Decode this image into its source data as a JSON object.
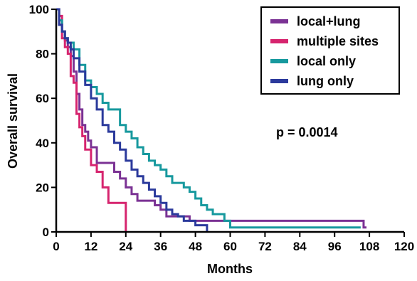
{
  "chart_data": {
    "type": "line",
    "step": true,
    "xlabel": "Months",
    "ylabel": "Overall survival",
    "xlim": [
      0,
      120
    ],
    "ylim": [
      0,
      100
    ],
    "xticks": [
      0,
      12,
      24,
      36,
      48,
      60,
      72,
      84,
      96,
      108,
      120
    ],
    "yticks": [
      0,
      20,
      40,
      60,
      80,
      100
    ],
    "grid": false,
    "legend_position": "top-right",
    "annotation": "p = 0.0014",
    "series": [
      {
        "name": "local+lung",
        "color": "#7b3294",
        "x": [
          0,
          1,
          2,
          3,
          4,
          5,
          6,
          7,
          8,
          9,
          10,
          11,
          12,
          14,
          16,
          18,
          20,
          22,
          24,
          26,
          28,
          30,
          32,
          34,
          36,
          38,
          42,
          46,
          50,
          54,
          60,
          106,
          107
        ],
        "y": [
          100,
          93,
          90,
          86,
          83,
          79,
          72,
          62,
          55,
          48,
          45,
          41,
          38,
          31,
          31,
          31,
          27,
          24,
          20,
          17,
          14,
          14,
          14,
          12,
          10,
          7,
          7,
          5,
          5,
          5,
          5,
          2,
          2
        ]
      },
      {
        "name": "multiple sites",
        "color": "#d6246e",
        "x": [
          0,
          1,
          2,
          3,
          4,
          5,
          6,
          7,
          8,
          9,
          10,
          11,
          12,
          14,
          16,
          18,
          24
        ],
        "y": [
          100,
          97,
          87,
          83,
          80,
          70,
          67,
          53,
          47,
          43,
          37,
          37,
          30,
          27,
          20,
          13,
          0
        ]
      },
      {
        "name": "local only",
        "color": "#17999e",
        "x": [
          0,
          1,
          2,
          3,
          4,
          6,
          8,
          10,
          12,
          14,
          16,
          18,
          20,
          22,
          24,
          26,
          28,
          30,
          32,
          34,
          36,
          38,
          40,
          42,
          44,
          46,
          48,
          50,
          52,
          54,
          56,
          58,
          60,
          105
        ],
        "y": [
          100,
          95,
          90,
          87,
          85,
          82,
          75,
          68,
          65,
          62,
          58,
          55,
          55,
          48,
          45,
          42,
          38,
          35,
          32,
          30,
          28,
          25,
          22,
          22,
          20,
          18,
          15,
          12,
          10,
          8,
          8,
          5,
          2,
          2
        ]
      },
      {
        "name": "lung only",
        "color": "#2b3a9c",
        "x": [
          0,
          1,
          2,
          3,
          4,
          5,
          6,
          8,
          10,
          12,
          14,
          16,
          18,
          20,
          22,
          24,
          26,
          28,
          30,
          32,
          34,
          36,
          38,
          40,
          42,
          44,
          48,
          52
        ],
        "y": [
          100,
          93,
          90,
          87,
          85,
          82,
          78,
          72,
          66,
          60,
          55,
          48,
          45,
          40,
          37,
          32,
          28,
          25,
          22,
          19,
          16,
          13,
          10,
          8,
          7,
          5,
          3,
          0
        ]
      }
    ]
  }
}
